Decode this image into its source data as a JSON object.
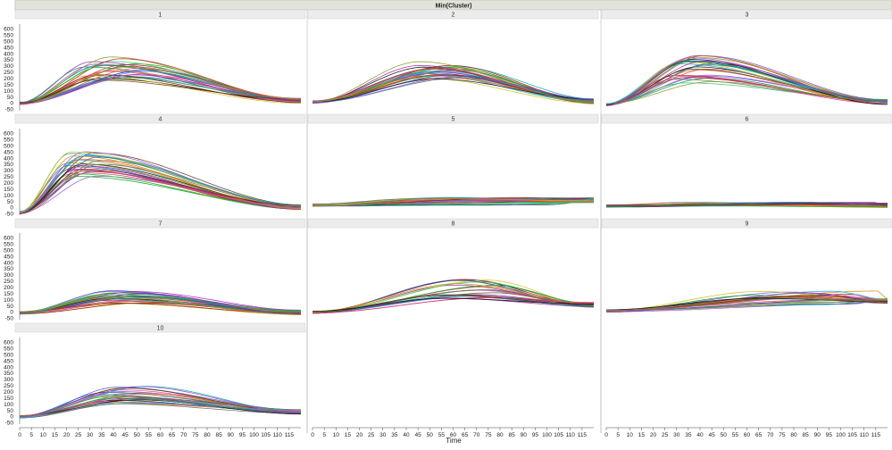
{
  "header": {
    "title": "Min(Cluster)"
  },
  "x_axis": {
    "label": "Time",
    "ticks": [
      0,
      5,
      10,
      15,
      20,
      25,
      30,
      35,
      40,
      45,
      50,
      55,
      60,
      65,
      70,
      75,
      80,
      85,
      90,
      95,
      100,
      105,
      110,
      115
    ]
  },
  "y_axis": {
    "ticks": [
      -50,
      0,
      50,
      100,
      150,
      200,
      250,
      300,
      350,
      400,
      450,
      500,
      550,
      600
    ],
    "range": [
      -60,
      640
    ]
  },
  "chart_data": {
    "type": "line",
    "title": "Min(Cluster)",
    "xlabel": "Time",
    "ylabel": "",
    "xlim": [
      0,
      120
    ],
    "ylim": [
      -60,
      640
    ],
    "layout": "small multiples, 3 columns, 4 rows",
    "panels": [
      {
        "label": "1",
        "profile": {
          "start": 0,
          "peak": 270,
          "peak_x": 38,
          "end": 20,
          "peak_spread": [
            170,
            380
          ],
          "peak_x_spread": [
            25,
            55
          ]
        }
      },
      {
        "label": "2",
        "profile": {
          "start": 10,
          "peak": 260,
          "peak_x": 55,
          "end": 15,
          "peak_spread": [
            190,
            340
          ],
          "peak_x_spread": [
            45,
            65
          ]
        }
      },
      {
        "label": "3",
        "profile": {
          "start": -10,
          "peak": 290,
          "peak_x": 38,
          "end": 10,
          "peak_spread": [
            150,
            390
          ],
          "peak_x_spread": [
            28,
            45
          ]
        }
      },
      {
        "label": "4",
        "profile": {
          "start": -40,
          "peak": 340,
          "peak_x": 27,
          "end": 5,
          "peak_spread": [
            250,
            460
          ],
          "peak_x_spread": [
            20,
            35
          ]
        }
      },
      {
        "label": "5",
        "profile": {
          "start": 20,
          "peak": 40,
          "peak_x": 60,
          "end": 60,
          "peak_spread": [
            20,
            90
          ],
          "peak_x_spread": [
            40,
            118
          ]
        }
      },
      {
        "label": "6",
        "profile": {
          "start": 15,
          "peak": 25,
          "peak_x": 40,
          "end": 20,
          "peak_spread": [
            10,
            45
          ],
          "peak_x_spread": [
            20,
            118
          ]
        }
      },
      {
        "label": "7",
        "profile": {
          "start": -5,
          "peak": 130,
          "peak_x": 45,
          "end": 0,
          "peak_spread": [
            70,
            180
          ],
          "peak_x_spread": [
            35,
            55
          ]
        }
      },
      {
        "label": "8",
        "profile": {
          "start": 0,
          "peak": 180,
          "peak_x": 68,
          "end": 60,
          "peak_spread": [
            110,
            270
          ],
          "peak_x_spread": [
            55,
            80
          ]
        }
      },
      {
        "label": "9",
        "profile": {
          "start": 10,
          "peak": 100,
          "peak_x": 85,
          "end": 90,
          "peak_spread": [
            60,
            175
          ],
          "peak_x_spread": [
            60,
            118
          ]
        }
      },
      {
        "label": "10",
        "profile": {
          "start": 0,
          "peak": 180,
          "peak_x": 45,
          "end": 40,
          "peak_spread": [
            90,
            250
          ],
          "peak_x_spread": [
            35,
            55
          ]
        }
      }
    ],
    "series_per_panel": 28
  },
  "colors": {
    "header_bg": "#e3e3dc",
    "panel_header_bg": "#ececec",
    "grid_divider": "#bbbbbb",
    "axis": "#444444",
    "palette": [
      "#1f4cc4",
      "#c21f1f",
      "#17a317",
      "#9b22b0",
      "#0aa6a6",
      "#d18a0b",
      "#5c3b13",
      "#e43da5",
      "#111111",
      "#7f9b14",
      "#5a5ad6",
      "#c25858",
      "#1c8f5f",
      "#a04fd0",
      "#2aa0d8",
      "#cfc11a",
      "#8a2020",
      "#2fcc6c",
      "#6b6b6b",
      "#f06a2a"
    ]
  }
}
